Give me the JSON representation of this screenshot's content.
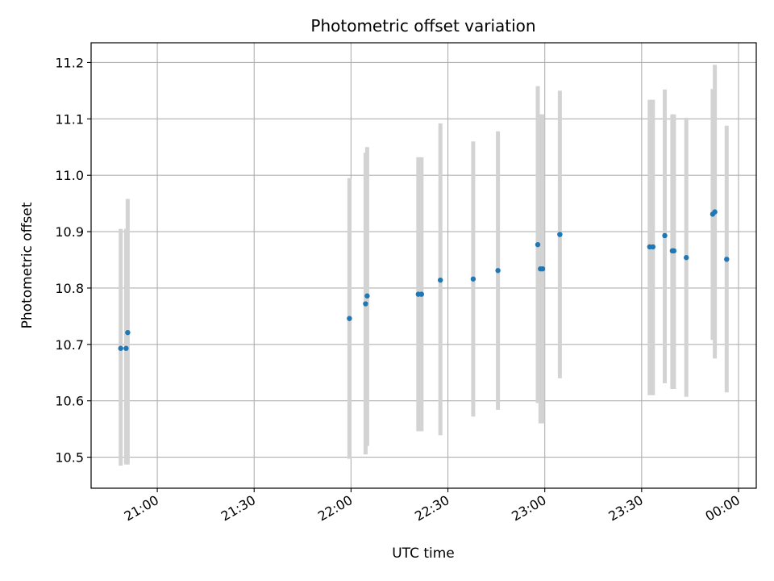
{
  "chart_data": {
    "type": "scatter",
    "title": "Photometric offset variation",
    "xlabel": "UTC time",
    "ylabel": "Photometric offset",
    "grid": true,
    "legend": "none",
    "x_axis_type": "time",
    "xlim": [
      "20:39:30",
      "00:05:30"
    ],
    "ylim": [
      10.445,
      11.235
    ],
    "x_ticks": [
      "21:00",
      "21:30",
      "22:00",
      "22:30",
      "23:00",
      "23:30",
      "00:00"
    ],
    "y_ticks": [
      10.5,
      10.6,
      10.7,
      10.8,
      10.9,
      11.0,
      11.1,
      11.2
    ],
    "colors": {
      "point": "#1f77b4",
      "errorbar": "#d3d3d3",
      "grid": "#b0b0b0"
    },
    "points": [
      {
        "t": "20:48:40",
        "y": 10.693,
        "lo": 10.485,
        "hi": 10.905
      },
      {
        "t": "20:50:20",
        "y": 10.693,
        "lo": 10.487,
        "hi": 10.905
      },
      {
        "t": "20:50:50",
        "y": 10.721,
        "lo": 10.487,
        "hi": 10.958
      },
      {
        "t": "21:59:30",
        "y": 10.746,
        "lo": 10.497,
        "hi": 10.995
      },
      {
        "t": "22:04:30",
        "y": 10.772,
        "lo": 10.505,
        "hi": 11.04
      },
      {
        "t": "22:05:00",
        "y": 10.786,
        "lo": 10.52,
        "hi": 11.05
      },
      {
        "t": "22:20:50",
        "y": 10.789,
        "lo": 10.546,
        "hi": 11.032
      },
      {
        "t": "22:21:50",
        "y": 10.789,
        "lo": 10.546,
        "hi": 11.032
      },
      {
        "t": "22:27:40",
        "y": 10.814,
        "lo": 10.539,
        "hi": 11.092
      },
      {
        "t": "22:37:50",
        "y": 10.816,
        "lo": 10.572,
        "hi": 11.06
      },
      {
        "t": "22:45:30",
        "y": 10.831,
        "lo": 10.584,
        "hi": 11.078
      },
      {
        "t": "22:57:50",
        "y": 10.877,
        "lo": 10.596,
        "hi": 11.158
      },
      {
        "t": "22:58:40",
        "y": 10.834,
        "lo": 10.56,
        "hi": 11.108
      },
      {
        "t": "22:59:20",
        "y": 10.834,
        "lo": 10.56,
        "hi": 11.108
      },
      {
        "t": "23:04:40",
        "y": 10.895,
        "lo": 10.64,
        "hi": 11.15
      },
      {
        "t": "23:32:30",
        "y": 10.873,
        "lo": 10.61,
        "hi": 11.134
      },
      {
        "t": "23:33:30",
        "y": 10.873,
        "lo": 10.61,
        "hi": 11.134
      },
      {
        "t": "23:37:10",
        "y": 10.893,
        "lo": 10.631,
        "hi": 11.152
      },
      {
        "t": "23:39:30",
        "y": 10.866,
        "lo": 10.621,
        "hi": 11.108
      },
      {
        "t": "23:40:00",
        "y": 10.866,
        "lo": 10.621,
        "hi": 11.108
      },
      {
        "t": "23:43:50",
        "y": 10.854,
        "lo": 10.607,
        "hi": 11.102
      },
      {
        "t": "23:52:00",
        "y": 10.931,
        "lo": 10.708,
        "hi": 11.153
      },
      {
        "t": "23:52:40",
        "y": 10.935,
        "lo": 10.675,
        "hi": 11.196
      },
      {
        "t": "23:56:20",
        "y": 10.851,
        "lo": 10.615,
        "hi": 11.088
      }
    ]
  }
}
